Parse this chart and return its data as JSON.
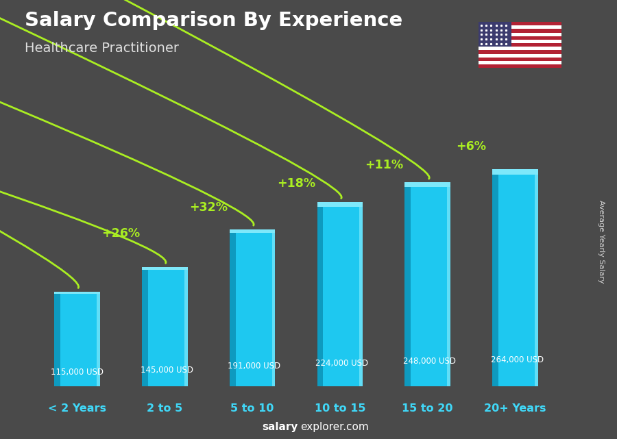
{
  "title": "Salary Comparison By Experience",
  "subtitle": "Healthcare Practitioner",
  "categories": [
    "< 2 Years",
    "2 to 5",
    "5 to 10",
    "10 to 15",
    "15 to 20",
    "20+ Years"
  ],
  "values": [
    115000,
    145000,
    191000,
    224000,
    248000,
    264000
  ],
  "value_labels": [
    "115,000 USD",
    "145,000 USD",
    "191,000 USD",
    "224,000 USD",
    "248,000 USD",
    "264,000 USD"
  ],
  "pct_changes": [
    "+26%",
    "+32%",
    "+18%",
    "+11%",
    "+6%"
  ],
  "bar_color_main": "#1ec8f0",
  "bar_color_left": "#0e9abf",
  "bar_color_highlight": "#7ee8fa",
  "background_color": "#4a4a4a",
  "title_color": "#ffffff",
  "subtitle_color": "#e0e0e0",
  "value_color": "#ffffff",
  "pct_color": "#aaee22",
  "xlabel_color": "#40d8f8",
  "watermark_bold": "salary",
  "watermark_normal": "explorer.com",
  "right_label": "Average Yearly Salary",
  "ylim": [
    0,
    320000
  ],
  "arc_params": [
    [
      0,
      1,
      "+26%",
      0.58,
      -0.45
    ],
    [
      1,
      2,
      "+32%",
      0.68,
      -0.42
    ],
    [
      2,
      3,
      "+18%",
      0.77,
      -0.4
    ],
    [
      3,
      4,
      "+11%",
      0.84,
      -0.38
    ],
    [
      4,
      5,
      "+6%",
      0.91,
      -0.36
    ]
  ]
}
